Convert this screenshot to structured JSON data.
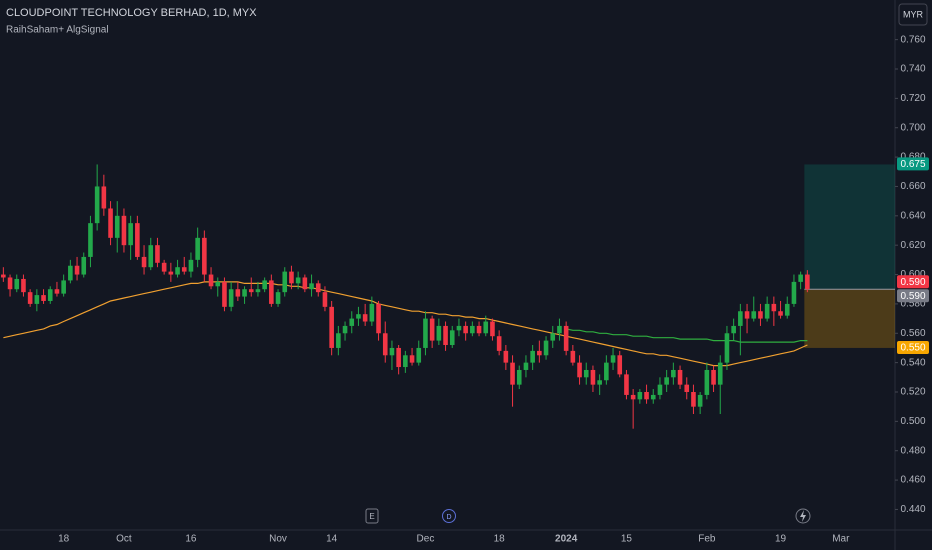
{
  "chart_data": {
    "type": "candlestick",
    "title": "CLOUDPOINT TECHNOLOGY BERHAD, 1D, MYX",
    "indicator": "RaihSaham+ AlgSignal",
    "currency": "MYR",
    "events": [
      "E",
      "D"
    ],
    "up_color": "#23a94b",
    "down_color": "#f23645",
    "ylim": [
      0.426,
      0.787
    ],
    "yticks": [
      {
        "value": 0.44,
        "label": "0.440"
      },
      {
        "value": 0.46,
        "label": "0.460"
      },
      {
        "value": 0.48,
        "label": "0.480"
      },
      {
        "value": 0.5,
        "label": "0.500"
      },
      {
        "value": 0.52,
        "label": "0.520"
      },
      {
        "value": 0.54,
        "label": "0.540"
      },
      {
        "value": 0.56,
        "label": "0.560"
      },
      {
        "value": 0.58,
        "label": "0.580"
      },
      {
        "value": 0.6,
        "label": "0.600"
      },
      {
        "value": 0.62,
        "label": "0.620"
      },
      {
        "value": 0.64,
        "label": "0.640"
      },
      {
        "value": 0.66,
        "label": "0.660"
      },
      {
        "value": 0.68,
        "label": "0.680"
      },
      {
        "value": 0.7,
        "label": "0.700"
      },
      {
        "value": 0.72,
        "label": "0.720"
      },
      {
        "value": 0.74,
        "label": "0.740"
      },
      {
        "value": 0.76,
        "label": "0.760"
      }
    ],
    "categories": [
      null,
      null,
      null,
      null,
      null,
      null,
      null,
      null,
      null,
      "18",
      null,
      null,
      null,
      null,
      null,
      null,
      null,
      null,
      "Oct",
      null,
      null,
      null,
      null,
      null,
      null,
      null,
      null,
      null,
      "16",
      null,
      null,
      null,
      null,
      null,
      null,
      null,
      null,
      null,
      null,
      null,
      null,
      "Nov",
      null,
      null,
      null,
      null,
      null,
      null,
      null,
      "14",
      null,
      null,
      null,
      null,
      null,
      null,
      null,
      null,
      null,
      null,
      null,
      null,
      null,
      "Dec",
      null,
      null,
      null,
      null,
      null,
      null,
      null,
      null,
      null,
      null,
      "18",
      null,
      null,
      null,
      null,
      null,
      null,
      null,
      null,
      null,
      "2024",
      null,
      null,
      null,
      null,
      null,
      null,
      null,
      null,
      "15",
      null,
      null,
      null,
      null,
      null,
      null,
      null,
      null,
      null,
      null,
      null,
      "Feb",
      null,
      null,
      null,
      null,
      null,
      null,
      null,
      null,
      null,
      null,
      "19",
      null,
      null,
      null,
      null,
      null,
      null,
      null,
      null,
      "Mar",
      null,
      null
    ],
    "candles": [
      [
        0.6,
        0.605,
        0.595,
        0.598
      ],
      [
        0.598,
        0.6,
        0.585,
        0.59
      ],
      [
        0.59,
        0.6,
        0.588,
        0.597
      ],
      [
        0.597,
        0.6,
        0.585,
        0.588
      ],
      [
        0.588,
        0.59,
        0.578,
        0.58
      ],
      [
        0.58,
        0.59,
        0.575,
        0.586
      ],
      [
        0.586,
        0.59,
        0.58,
        0.582
      ],
      [
        0.582,
        0.592,
        0.58,
        0.59
      ],
      [
        0.59,
        0.595,
        0.585,
        0.587
      ],
      [
        0.587,
        0.6,
        0.585,
        0.596
      ],
      [
        0.596,
        0.61,
        0.594,
        0.606
      ],
      [
        0.606,
        0.612,
        0.596,
        0.6
      ],
      [
        0.6,
        0.615,
        0.598,
        0.612
      ],
      [
        0.612,
        0.64,
        0.605,
        0.635
      ],
      [
        0.635,
        0.675,
        0.63,
        0.66
      ],
      [
        0.66,
        0.668,
        0.64,
        0.645
      ],
      [
        0.645,
        0.65,
        0.62,
        0.625
      ],
      [
        0.625,
        0.65,
        0.615,
        0.64
      ],
      [
        0.64,
        0.645,
        0.615,
        0.62
      ],
      [
        0.62,
        0.64,
        0.61,
        0.635
      ],
      [
        0.635,
        0.64,
        0.61,
        0.612
      ],
      [
        0.612,
        0.62,
        0.6,
        0.605
      ],
      [
        0.605,
        0.625,
        0.603,
        0.62
      ],
      [
        0.62,
        0.625,
        0.605,
        0.608
      ],
      [
        0.608,
        0.61,
        0.6,
        0.602
      ],
      [
        0.602,
        0.608,
        0.595,
        0.6
      ],
      [
        0.6,
        0.61,
        0.598,
        0.605
      ],
      [
        0.605,
        0.612,
        0.6,
        0.602
      ],
      [
        0.602,
        0.615,
        0.598,
        0.61
      ],
      [
        0.61,
        0.632,
        0.605,
        0.625
      ],
      [
        0.625,
        0.63,
        0.595,
        0.6
      ],
      [
        0.6,
        0.605,
        0.59,
        0.592
      ],
      [
        0.592,
        0.598,
        0.585,
        0.595
      ],
      [
        0.595,
        0.598,
        0.575,
        0.578
      ],
      [
        0.578,
        0.595,
        0.575,
        0.59
      ],
      [
        0.59,
        0.595,
        0.582,
        0.585
      ],
      [
        0.585,
        0.592,
        0.58,
        0.59
      ],
      [
        0.59,
        0.598,
        0.585,
        0.588
      ],
      [
        0.588,
        0.595,
        0.585,
        0.59
      ],
      [
        0.59,
        0.598,
        0.588,
        0.596
      ],
      [
        0.596,
        0.6,
        0.578,
        0.58
      ],
      [
        0.58,
        0.59,
        0.578,
        0.588
      ],
      [
        0.588,
        0.605,
        0.585,
        0.602
      ],
      [
        0.602,
        0.606,
        0.59,
        0.594
      ],
      [
        0.594,
        0.602,
        0.59,
        0.598
      ],
      [
        0.598,
        0.6,
        0.588,
        0.59
      ],
      [
        0.59,
        0.6,
        0.585,
        0.594
      ],
      [
        0.594,
        0.596,
        0.585,
        0.588
      ],
      [
        0.588,
        0.592,
        0.575,
        0.578
      ],
      [
        0.578,
        0.582,
        0.545,
        0.55
      ],
      [
        0.55,
        0.565,
        0.545,
        0.56
      ],
      [
        0.56,
        0.568,
        0.555,
        0.565
      ],
      [
        0.565,
        0.575,
        0.56,
        0.57
      ],
      [
        0.57,
        0.578,
        0.565,
        0.573
      ],
      [
        0.573,
        0.58,
        0.565,
        0.568
      ],
      [
        0.568,
        0.585,
        0.565,
        0.58
      ],
      [
        0.58,
        0.582,
        0.555,
        0.56
      ],
      [
        0.56,
        0.568,
        0.54,
        0.545
      ],
      [
        0.545,
        0.555,
        0.535,
        0.55
      ],
      [
        0.55,
        0.552,
        0.532,
        0.537
      ],
      [
        0.537,
        0.548,
        0.533,
        0.545
      ],
      [
        0.545,
        0.55,
        0.538,
        0.54
      ],
      [
        0.54,
        0.555,
        0.538,
        0.55
      ],
      [
        0.55,
        0.575,
        0.545,
        0.57
      ],
      [
        0.57,
        0.572,
        0.55,
        0.555
      ],
      [
        0.555,
        0.57,
        0.552,
        0.565
      ],
      [
        0.565,
        0.568,
        0.548,
        0.552
      ],
      [
        0.552,
        0.565,
        0.55,
        0.562
      ],
      [
        0.562,
        0.57,
        0.558,
        0.565
      ],
      [
        0.565,
        0.568,
        0.555,
        0.56
      ],
      [
        0.56,
        0.568,
        0.558,
        0.565
      ],
      [
        0.565,
        0.568,
        0.558,
        0.56
      ],
      [
        0.56,
        0.572,
        0.558,
        0.568
      ],
      [
        0.568,
        0.57,
        0.555,
        0.558
      ],
      [
        0.558,
        0.562,
        0.545,
        0.548
      ],
      [
        0.548,
        0.552,
        0.535,
        0.54
      ],
      [
        0.54,
        0.545,
        0.51,
        0.525
      ],
      [
        0.525,
        0.538,
        0.522,
        0.535
      ],
      [
        0.535,
        0.545,
        0.53,
        0.54
      ],
      [
        0.54,
        0.552,
        0.535,
        0.548
      ],
      [
        0.548,
        0.555,
        0.54,
        0.545
      ],
      [
        0.545,
        0.558,
        0.542,
        0.555
      ],
      [
        0.555,
        0.565,
        0.55,
        0.56
      ],
      [
        0.56,
        0.57,
        0.555,
        0.565
      ],
      [
        0.565,
        0.568,
        0.545,
        0.548
      ],
      [
        0.548,
        0.552,
        0.538,
        0.54
      ],
      [
        0.54,
        0.545,
        0.525,
        0.53
      ],
      [
        0.53,
        0.54,
        0.525,
        0.535
      ],
      [
        0.535,
        0.538,
        0.52,
        0.525
      ],
      [
        0.525,
        0.532,
        0.518,
        0.528
      ],
      [
        0.528,
        0.545,
        0.525,
        0.54
      ],
      [
        0.54,
        0.55,
        0.535,
        0.545
      ],
      [
        0.545,
        0.548,
        0.53,
        0.532
      ],
      [
        0.532,
        0.535,
        0.515,
        0.518
      ],
      [
        0.518,
        0.522,
        0.495,
        0.515
      ],
      [
        0.515,
        0.522,
        0.512,
        0.52
      ],
      [
        0.52,
        0.525,
        0.512,
        0.515
      ],
      [
        0.515,
        0.522,
        0.512,
        0.518
      ],
      [
        0.518,
        0.53,
        0.515,
        0.525
      ],
      [
        0.525,
        0.535,
        0.52,
        0.53
      ],
      [
        0.53,
        0.54,
        0.525,
        0.535
      ],
      [
        0.535,
        0.538,
        0.522,
        0.525
      ],
      [
        0.525,
        0.53,
        0.515,
        0.52
      ],
      [
        0.52,
        0.525,
        0.505,
        0.51
      ],
      [
        0.51,
        0.52,
        0.505,
        0.518
      ],
      [
        0.518,
        0.54,
        0.515,
        0.535
      ],
      [
        0.535,
        0.538,
        0.52,
        0.525
      ],
      [
        0.525,
        0.545,
        0.505,
        0.54
      ],
      [
        0.54,
        0.565,
        0.535,
        0.56
      ],
      [
        0.56,
        0.57,
        0.555,
        0.565
      ],
      [
        0.565,
        0.58,
        0.545,
        0.575
      ],
      [
        0.575,
        0.58,
        0.56,
        0.57
      ],
      [
        0.57,
        0.585,
        0.568,
        0.575
      ],
      [
        0.575,
        0.58,
        0.565,
        0.57
      ],
      [
        0.57,
        0.585,
        0.568,
        0.58
      ],
      [
        0.58,
        0.585,
        0.565,
        0.575
      ],
      [
        0.575,
        0.582,
        0.57,
        0.572
      ],
      [
        0.572,
        0.585,
        0.57,
        0.58
      ],
      [
        0.58,
        0.6,
        0.578,
        0.595
      ],
      [
        0.595,
        0.602,
        0.59,
        0.6
      ],
      [
        0.6,
        0.603,
        0.588,
        0.59
      ],
      null,
      null,
      null,
      null,
      null,
      null,
      null
    ],
    "lines": [
      {
        "color": "#f0a030",
        "values": [
          0.557,
          0.558,
          0.559,
          0.56,
          0.561,
          0.562,
          0.563,
          0.565,
          0.566,
          0.568,
          0.57,
          0.572,
          0.574,
          0.576,
          0.578,
          0.58,
          0.582,
          0.583,
          0.584,
          0.585,
          0.586,
          0.587,
          0.588,
          0.589,
          0.59,
          0.591,
          0.592,
          0.593,
          0.594,
          0.594,
          0.595,
          0.595,
          0.595,
          0.595,
          0.595,
          0.595,
          0.594,
          0.594,
          0.594,
          0.594,
          0.594,
          0.593,
          0.593,
          0.592,
          0.592,
          0.591,
          0.591,
          0.59,
          0.589,
          0.588,
          0.587,
          0.586,
          0.585,
          0.584,
          0.583,
          0.582,
          0.58,
          0.579,
          0.578,
          0.577,
          0.576,
          0.575,
          0.575,
          0.574,
          0.574,
          0.573,
          0.573,
          0.572,
          0.572,
          0.571,
          0.571,
          0.57,
          0.57,
          0.569,
          0.568,
          0.567,
          0.566,
          0.565,
          0.564,
          0.563,
          0.562,
          0.561,
          0.56,
          0.559,
          0.558,
          0.557,
          0.556,
          0.555,
          0.554,
          0.553,
          0.552,
          0.551,
          0.55,
          0.549,
          0.548,
          0.547,
          0.546,
          0.546,
          0.545,
          0.545,
          0.544,
          0.543,
          0.542,
          0.541,
          0.54,
          0.539,
          0.538,
          0.538,
          0.538,
          0.539,
          0.54,
          0.541,
          0.542,
          0.543,
          0.544,
          0.545,
          0.546,
          0.547,
          0.548,
          0.55,
          0.552,
          null,
          null,
          null,
          null,
          null,
          null,
          null
        ]
      },
      {
        "color": "#2fae3f",
        "values": [
          null,
          null,
          null,
          null,
          null,
          null,
          null,
          null,
          null,
          null,
          null,
          null,
          null,
          null,
          null,
          null,
          null,
          null,
          null,
          null,
          null,
          null,
          null,
          null,
          null,
          null,
          null,
          null,
          null,
          null,
          null,
          null,
          null,
          null,
          null,
          null,
          null,
          null,
          null,
          null,
          null,
          null,
          null,
          null,
          null,
          null,
          null,
          null,
          null,
          null,
          null,
          null,
          null,
          null,
          null,
          null,
          null,
          null,
          null,
          null,
          null,
          null,
          null,
          null,
          null,
          null,
          null,
          null,
          null,
          null,
          null,
          null,
          null,
          null,
          null,
          null,
          null,
          null,
          null,
          null,
          null,
          null,
          null,
          null,
          0.563,
          0.562,
          0.562,
          0.561,
          0.561,
          0.56,
          0.56,
          0.559,
          0.559,
          0.559,
          0.558,
          0.558,
          0.558,
          0.557,
          0.557,
          0.557,
          0.557,
          0.556,
          0.556,
          0.556,
          0.556,
          0.556,
          0.555,
          0.555,
          0.555,
          0.555,
          0.554,
          0.554,
          0.554,
          0.554,
          0.554,
          0.554,
          0.554,
          0.554,
          0.554,
          0.555,
          0.555,
          null,
          null,
          null,
          null,
          null,
          null,
          null
        ]
      }
    ],
    "price_labels": [
      {
        "value": 0.675,
        "label": "0.675",
        "color": "#089981"
      },
      {
        "value": 0.59,
        "label": "0.590",
        "color": "#f23645"
      },
      {
        "value": 0.59,
        "label": "0.590",
        "color": "#787b86"
      },
      {
        "value": 0.55,
        "label": "0.550",
        "color": "#f7a600"
      }
    ]
  }
}
